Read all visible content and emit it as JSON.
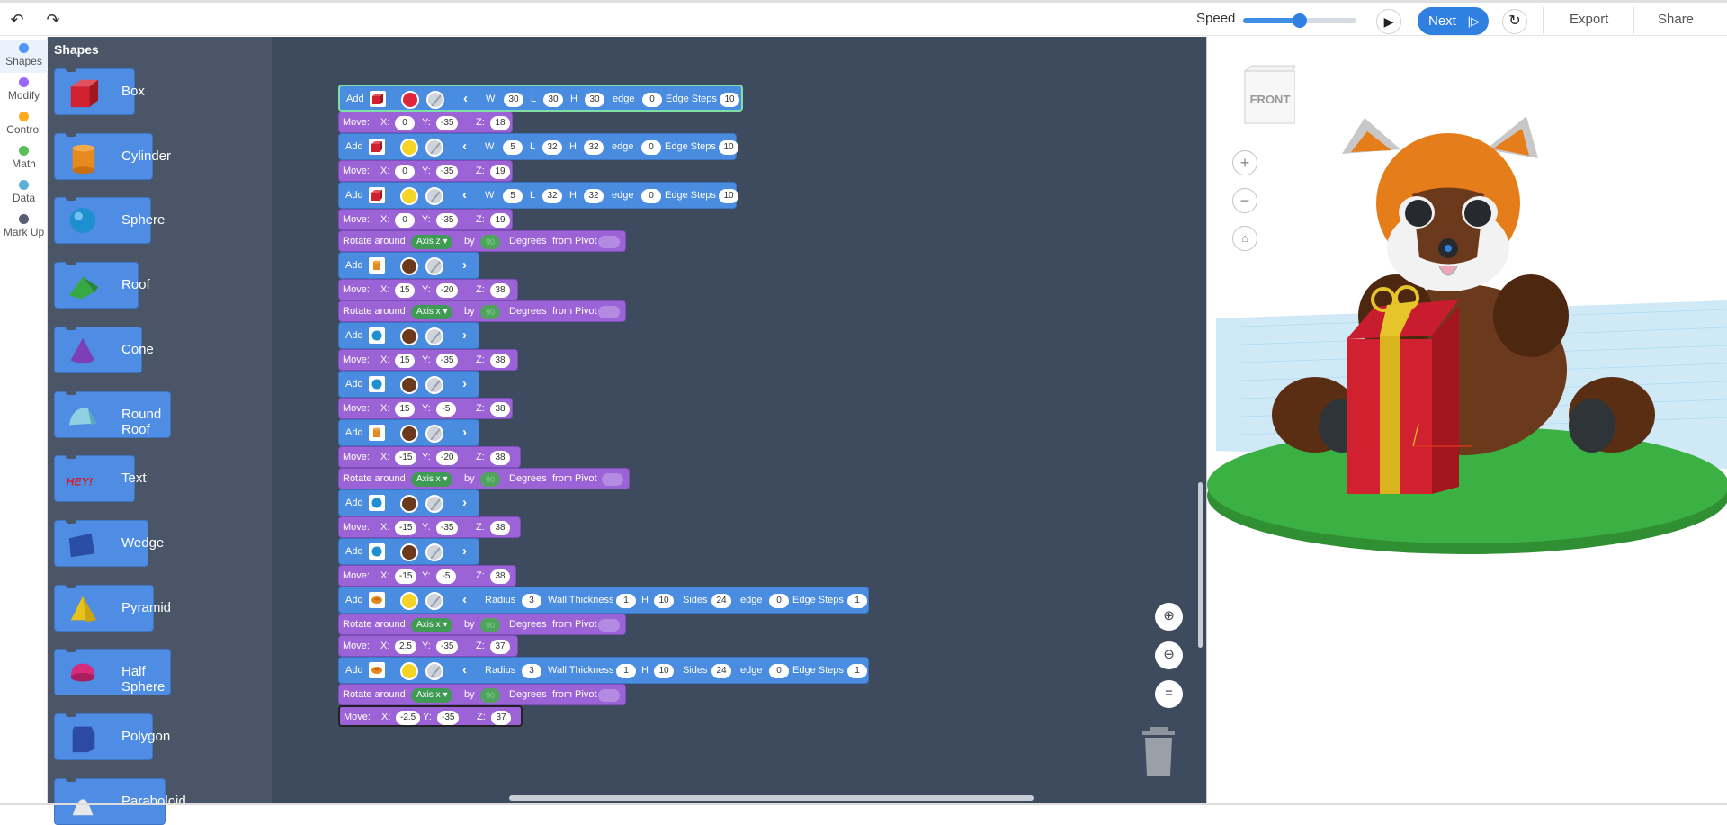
{
  "toolbar": {
    "undo_icon": "undo-arrow-icon",
    "redo_icon": "redo-arrow-icon",
    "speed_label": "Speed",
    "speed_value": 0.5,
    "next_label": "Next",
    "export_label": "Export",
    "share_label": "Share"
  },
  "categories": [
    {
      "label": "Shapes",
      "color": "#4c97ff"
    },
    {
      "label": "Modify",
      "color": "#9966ff"
    },
    {
      "label": "Control",
      "color": "#ffab19"
    },
    {
      "label": "Math",
      "color": "#59c059"
    },
    {
      "label": "Data",
      "color": "#5cb1d6"
    },
    {
      "label": "Mark Up",
      "color": "#575e75"
    }
  ],
  "flyout": {
    "title": "Shapes",
    "shapes": [
      {
        "label": "Box",
        "icon": "box-icon"
      },
      {
        "label": "Cylinder",
        "icon": "cylinder-icon"
      },
      {
        "label": "Sphere",
        "icon": "sphere-icon"
      },
      {
        "label": "Roof",
        "icon": "roof-icon"
      },
      {
        "label": "Cone",
        "icon": "cone-icon"
      },
      {
        "label": "Round Roof",
        "icon": "round-roof-icon"
      },
      {
        "label": "Text",
        "icon": "text-shape-icon"
      },
      {
        "label": "Wedge",
        "icon": "wedge-icon"
      },
      {
        "label": "Pyramid",
        "icon": "pyramid-icon"
      },
      {
        "label": "Half Sphere",
        "icon": "half-sphere-icon"
      },
      {
        "label": "Polygon",
        "icon": "polygon-icon"
      },
      {
        "label": "Paraboloid",
        "icon": "paraboloid-icon"
      }
    ],
    "text_icon_label": "HEY!"
  },
  "labels": {
    "add": "Add",
    "move": "Move:",
    "rotate": "Rotate around",
    "by": "by",
    "degrees": "Degrees",
    "from_pivot": "from Pivot",
    "x": "X:",
    "y": "Y:",
    "z": "Z:",
    "w": "W",
    "l": "L",
    "h": "H",
    "edge": "edge",
    "edge_steps": "Edge Steps",
    "radius": "Radius",
    "wall_thickness": "Wall Thickness",
    "sides": "Sides",
    "axis_z": "Axis z ▾",
    "axis_x": "Axis x ▾",
    "rot_value": "90"
  },
  "code": {
    "b1": {
      "w": "30",
      "l": "30",
      "h": "30",
      "edge": "0",
      "steps": "10",
      "color": "#e0243a",
      "shape": "box"
    },
    "m1": {
      "x": "0",
      "y": "-35",
      "z": "18"
    },
    "b2": {
      "w": "5",
      "l": "32",
      "h": "32",
      "edge": "0",
      "steps": "10",
      "color": "#f5d428",
      "shape": "box"
    },
    "m2": {
      "x": "0",
      "y": "-35",
      "z": "19"
    },
    "b3": {
      "w": "5",
      "l": "32",
      "h": "32",
      "edge": "0",
      "steps": "10",
      "color": "#f5d428",
      "shape": "box"
    },
    "m3": {
      "x": "0",
      "y": "-35",
      "z": "19"
    },
    "b4": {
      "color": "#6b3a1c",
      "shape": "cylinder"
    },
    "m4": {
      "x": "15",
      "y": "-20",
      "z": "38"
    },
    "b5": {
      "color": "#6b3a1c",
      "shape": "sphere"
    },
    "m5": {
      "x": "15",
      "y": "-35",
      "z": "38"
    },
    "b6": {
      "color": "#6b3a1c",
      "shape": "sphere"
    },
    "m6": {
      "x": "15",
      "y": "-5",
      "z": "38"
    },
    "b7": {
      "color": "#6b3a1c",
      "shape": "cylinder"
    },
    "m7": {
      "x": "-15",
      "y": "-20",
      "z": "38"
    },
    "b8": {
      "color": "#6b3a1c",
      "shape": "sphere"
    },
    "m8": {
      "x": "-15",
      "y": "-35",
      "z": "38"
    },
    "b9": {
      "color": "#6b3a1c",
      "shape": "sphere"
    },
    "m9": {
      "x": "-15",
      "y": "-5",
      "z": "38"
    },
    "t1": {
      "radius": "3",
      "wall": "1",
      "h": "10",
      "sides": "24",
      "edge": "0",
      "steps": "1",
      "color": "#f5d428",
      "shape": "tube"
    },
    "m10": {
      "x": "2.5",
      "y": "-35",
      "z": "37"
    },
    "t2": {
      "radius": "3",
      "wall": "1",
      "h": "10",
      "sides": "24",
      "edge": "0",
      "steps": "1",
      "color": "#f5d428",
      "shape": "tube"
    },
    "m11": {
      "x": "-2.5",
      "y": "-35",
      "z": "37"
    }
  },
  "viewport": {
    "viewcube_label": "FRONT",
    "zoom_in_icon": "zoom-in-icon",
    "zoom_out_icon": "zoom-out-icon",
    "home_view_icon": "home-view-icon"
  },
  "colors": {
    "accent": "#2f80e0",
    "block_add": "#4a8ce0",
    "block_modify": "#9b63d6",
    "workspace": "#3e4b5e",
    "flyout": "#4a5668"
  }
}
